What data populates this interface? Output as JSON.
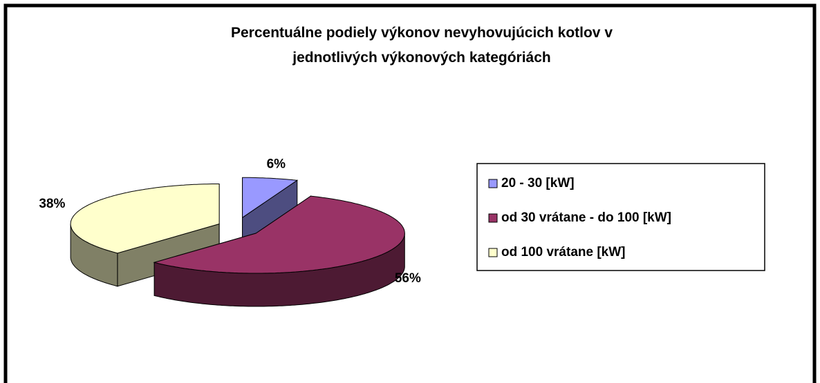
{
  "chart_data": {
    "type": "pie3d",
    "title": "Percentuálne podiely výkonov nevyhovujúcich kotlov v jednotlivých výkonových kategóriách",
    "categories": [
      "20 - 30 [kW]",
      "od 30 vrátane - do 100 [kW]",
      "od 100 vrátane [kW]"
    ],
    "values": [
      6,
      56,
      38
    ],
    "value_labels": [
      "6%",
      "56%",
      "38%"
    ],
    "colors": [
      "#9999ff",
      "#993366",
      "#ffffcc"
    ],
    "legend": "right"
  }
}
